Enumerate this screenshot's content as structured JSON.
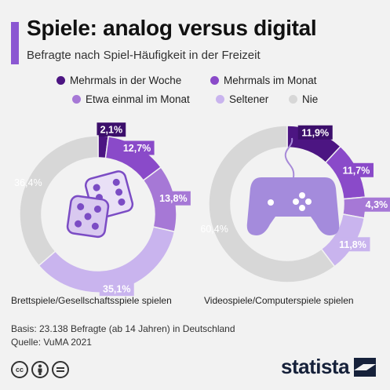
{
  "header": {
    "title": "Spiele: analog versus digital",
    "subtitle": "Befragte nach Spiel-Häufigkeit in der Freizeit"
  },
  "legend": [
    {
      "label": "Mehrmals in der Woche",
      "color": "#4c1582"
    },
    {
      "label": "Mehrmals im Monat",
      "color": "#8a4ac9"
    },
    {
      "label": "Etwa einmal im Monat",
      "color": "#a678d6"
    },
    {
      "label": "Seltener",
      "color": "#c9b4ee"
    },
    {
      "label": "Nie",
      "color": "#d7d7d7"
    }
  ],
  "chart_data": [
    {
      "type": "pie",
      "variant": "donut",
      "caption": "Brettspiele/Gesellschaftsspiele spielen",
      "icon": "dice-icon",
      "slices": [
        {
          "category": "Mehrmals in der Woche",
          "value": 2.1,
          "label": "2,1%"
        },
        {
          "category": "Mehrmals im Monat",
          "value": 12.7,
          "label": "12,7%"
        },
        {
          "category": "Etwa einmal im Monat",
          "value": 13.8,
          "label": "13,8%"
        },
        {
          "category": "Seltener",
          "value": 35.1,
          "label": "35,1%"
        },
        {
          "category": "Nie",
          "value": 36.4,
          "label": "36,4%"
        }
      ]
    },
    {
      "type": "pie",
      "variant": "donut",
      "caption": "Videospiele/Computerspiele spielen",
      "icon": "gamepad-icon",
      "slices": [
        {
          "category": "Mehrmals in der Woche",
          "value": 11.9,
          "label": "11,9%"
        },
        {
          "category": "Mehrmals im Monat",
          "value": 11.7,
          "label": "11,7%"
        },
        {
          "category": "Etwa einmal im Monat",
          "value": 4.3,
          "label": "4,3%"
        },
        {
          "category": "Seltener",
          "value": 11.8,
          "label": "11,8%"
        },
        {
          "category": "Nie",
          "value": 60.4,
          "label": "60,4%"
        }
      ]
    }
  ],
  "footer": {
    "basis": "Basis: 23.138 Befragte (ab 14 Jahren) in Deutschland",
    "source": "Quelle: VuMA 2021",
    "brand": "statista",
    "license_icons": [
      "cc-icon",
      "by-icon",
      "nd-icon"
    ]
  }
}
